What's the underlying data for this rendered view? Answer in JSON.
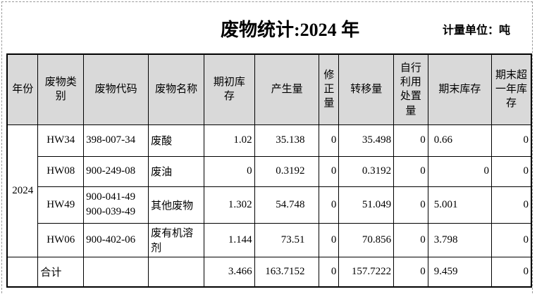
{
  "title": "废物统计:2024 年",
  "unit_label": "计量单位：吨",
  "colors": {
    "header_bg": "#d9d9d9",
    "border": "#000000",
    "page_break_dash": "#9a9a9a"
  },
  "table": {
    "headers": [
      "年份",
      "废物类\n别",
      "废物代码",
      "废物名称",
      "期初库\n存",
      "产生量",
      "修\n正\n量",
      "转移量",
      "自行\n利用\n处置\n量",
      "期末库存",
      "期末超\n一年库\n存"
    ],
    "year": "2024",
    "rows": [
      {
        "category": "HW34",
        "code": "398-007-34",
        "name": "废酸",
        "opening": "1.02",
        "generated": "35.138",
        "corrected": "0",
        "transferred": "35.498",
        "self_disposed": "0",
        "closing": "0.66",
        "closing_over_year": "0"
      },
      {
        "category": "HW08",
        "code": "900-249-08",
        "name": "废油",
        "opening": "0",
        "generated": "0.3192",
        "corrected": "0",
        "transferred": "0.3192",
        "self_disposed": "0",
        "closing": "0",
        "closing_over_year": "0"
      },
      {
        "category": "HW49",
        "code": "900-041-49\n900-039-49",
        "name": "其他废物",
        "opening": "1.302",
        "generated": "54.748",
        "corrected": "0",
        "transferred": "51.049",
        "self_disposed": "0",
        "closing": "5.001",
        "closing_over_year": "0"
      },
      {
        "category": "HW06",
        "code": "900-402-06",
        "name": "废有机溶剂",
        "opening": "1.144",
        "generated": "73.51",
        "corrected": "0",
        "transferred": "70.856",
        "self_disposed": "0",
        "closing": "3.798",
        "closing_over_year": "0"
      }
    ],
    "total_row": {
      "label": "合计",
      "opening": "3.466",
      "generated": "163.7152",
      "corrected": "0",
      "transferred": "157.7222",
      "self_disposed": "0",
      "closing": "9.459",
      "closing_over_year": "0"
    }
  }
}
